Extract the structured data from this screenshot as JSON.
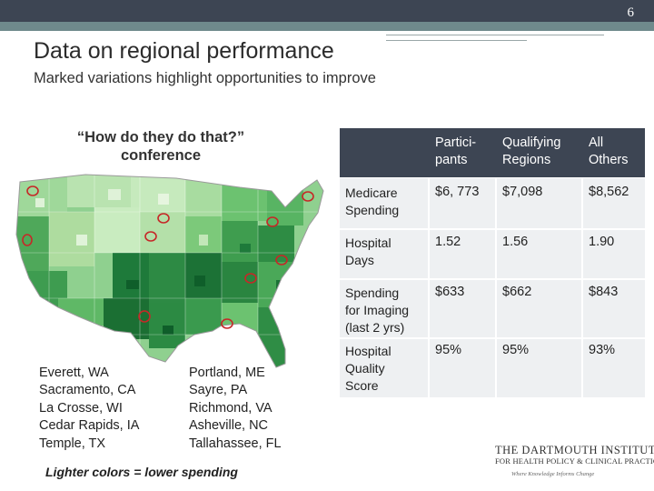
{
  "page_number": "6",
  "title": "Data on regional performance",
  "subtitle": "Marked variations highlight opportunities to improve",
  "conference": {
    "line1": "“How do they do that?”",
    "line2": "conference"
  },
  "map": {
    "icon": "us-map-icon",
    "colors": {
      "light": "#cfe8c5",
      "mid": "#5db86b",
      "dark": "#1e7a3a",
      "highlight": "#c62828"
    }
  },
  "cities_left": [
    "Everett, WA",
    "Sacramento, CA",
    "La Crosse, WI",
    "Cedar Rapids, IA",
    "Temple, TX"
  ],
  "cities_right": [
    "Portland, ME",
    "Sayre, PA",
    "Richmond, VA",
    "Asheville, NC",
    "Tallahassee, FL"
  ],
  "legend_note": "Lighter colors = lower spending",
  "table": {
    "headers": [
      {
        "line1": "Partici-",
        "line2": "pants"
      },
      {
        "line1": "Qualifying",
        "line2": "Regions"
      },
      {
        "line1": "All",
        "line2": "Others"
      }
    ],
    "rows": [
      {
        "label": [
          "Medicare",
          "Spending"
        ],
        "values": [
          "$6, 773",
          "$7,098",
          "$8,562"
        ]
      },
      {
        "label": [
          "Hospital",
          "Days"
        ],
        "values": [
          "1.52",
          "1.56",
          "1.90"
        ]
      },
      {
        "label": [
          "Spending",
          "for Imaging",
          "(last 2 yrs)"
        ],
        "values": [
          "$633",
          "$662",
          "$843"
        ]
      },
      {
        "label": [
          "Hospital",
          "Quality",
          "Score"
        ],
        "values": [
          "95%",
          "95%",
          "93%"
        ]
      }
    ]
  },
  "logo": {
    "line1": "THE DARTMOUTH INSTITUTE",
    "line2": "FOR HEALTH POLICY & CLINICAL PRACTICE",
    "line3": "Where Knowledge Informs Change"
  },
  "colors": {
    "header_bg": "#3d4553",
    "teal_bar": "#6f8a8c",
    "row_bg": "#eef0f2"
  }
}
